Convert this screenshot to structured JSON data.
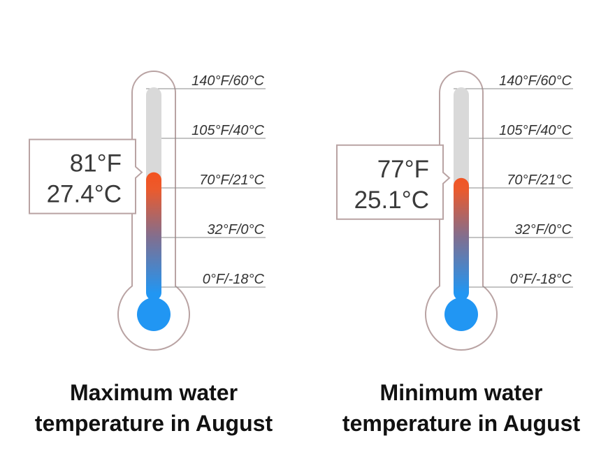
{
  "chart_data": [
    {
      "type": "gauge",
      "title": "Maximum water temperature in August",
      "title_lines": [
        "Maximum water",
        "temperature in August"
      ],
      "value_f": 81,
      "value_c": 27.4,
      "value_label_f": "81°F",
      "value_label_c": "27.4°C",
      "scale_labels": [
        "140°F/60°C",
        "105°F/40°C",
        "70°F/21°C",
        "32°F/0°C",
        "0°F/-18°C"
      ],
      "fill_gradient": [
        "#2196f3",
        "#f4511e"
      ]
    },
    {
      "type": "gauge",
      "title": "Minimum water temperature in August",
      "title_lines": [
        "Minimum water",
        "temperature in August"
      ],
      "value_f": 77,
      "value_c": 25.1,
      "value_label_f": "77°F",
      "value_label_c": "25.1°C",
      "scale_labels": [
        "140°F/60°C",
        "105°F/40°C",
        "70°F/21°C",
        "32°F/0°C",
        "0°F/-18°C"
      ],
      "fill_gradient": [
        "#2196f3",
        "#f4511e"
      ]
    }
  ],
  "colors": {
    "tube_outline": "#b9a3a3",
    "tube_track": "#d9d9d9",
    "gridline": "#8a8a8a",
    "bulb": "#2196f3",
    "fill_top": "#f4511e",
    "fill_bottom": "#2196f3"
  }
}
